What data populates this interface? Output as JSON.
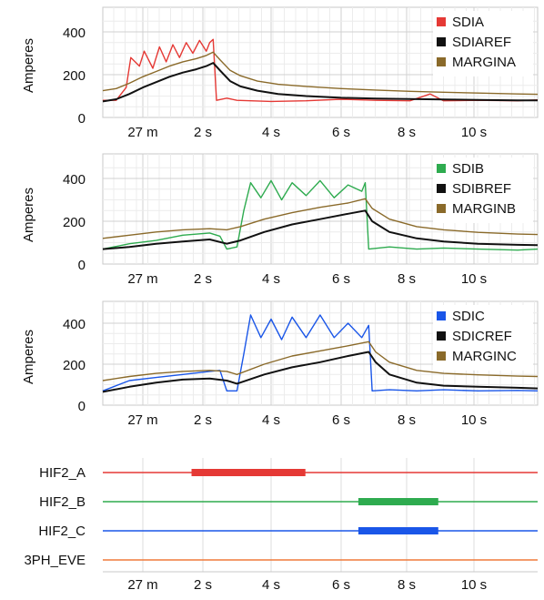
{
  "x_ticks": [
    "27 m",
    "2 s",
    "4 s",
    "6 s",
    "8 s",
    "10 s"
  ],
  "panels": [
    {
      "ylabel": "Amperes",
      "y_ticks": [
        "0",
        "200",
        "400"
      ],
      "legend": [
        {
          "label": "SDIA",
          "color": "#e53935"
        },
        {
          "label": "SDIAREF",
          "color": "#111111"
        },
        {
          "label": "MARGINA",
          "color": "#8a6a2a"
        }
      ]
    },
    {
      "ylabel": "Amperes",
      "y_ticks": [
        "0",
        "200",
        "400"
      ],
      "legend": [
        {
          "label": "SDIB",
          "color": "#2eab4f"
        },
        {
          "label": "SDIBREF",
          "color": "#111111"
        },
        {
          "label": "MARGINB",
          "color": "#8a6a2a"
        }
      ]
    },
    {
      "ylabel": "Amperes",
      "y_ticks": [
        "0",
        "200",
        "400"
      ],
      "legend": [
        {
          "label": "SDIC",
          "color": "#1a56e8"
        },
        {
          "label": "SDICREF",
          "color": "#111111"
        },
        {
          "label": "MARGINC",
          "color": "#8a6a2a"
        }
      ]
    }
  ],
  "digital": {
    "labels": [
      "HIF2_A",
      "HIF2_B",
      "HIF2_C",
      "3PH_EVE"
    ]
  },
  "chart_data": [
    {
      "type": "line",
      "ylabel": "Amperes",
      "ylim": [
        0,
        460
      ],
      "x_tick_labels": [
        "27 m",
        "2 s",
        "4 s",
        "6 s",
        "8 s",
        "10 s"
      ],
      "grid": true,
      "legend_position": "top-right",
      "series": [
        {
          "name": "SDIA",
          "color": "#e53935",
          "points": [
            [
              0,
              80
            ],
            [
              0.2,
              80
            ],
            [
              0.35,
              140
            ],
            [
              0.42,
              280
            ],
            [
              0.55,
              240
            ],
            [
              0.62,
              310
            ],
            [
              0.75,
              230
            ],
            [
              0.85,
              330
            ],
            [
              0.95,
              260
            ],
            [
              1.05,
              340
            ],
            [
              1.15,
              280
            ],
            [
              1.25,
              350
            ],
            [
              1.35,
              300
            ],
            [
              1.45,
              360
            ],
            [
              1.55,
              310
            ],
            [
              1.6,
              350
            ],
            [
              1.65,
              365
            ],
            [
              1.7,
              80
            ],
            [
              1.85,
              90
            ],
            [
              2,
              80
            ],
            [
              2.5,
              75
            ],
            [
              3,
              78
            ],
            [
              3.5,
              85
            ],
            [
              4,
              80
            ],
            [
              4.5,
              78
            ],
            [
              4.8,
              110
            ],
            [
              5,
              78
            ],
            [
              5.5,
              80
            ],
            [
              6,
              78
            ],
            [
              6.25,
              82
            ]
          ]
        },
        {
          "name": "SDIAREF",
          "color": "#111111",
          "points": [
            [
              0,
              75
            ],
            [
              0.2,
              85
            ],
            [
              0.4,
              110
            ],
            [
              0.6,
              140
            ],
            [
              0.8,
              165
            ],
            [
              1,
              190
            ],
            [
              1.2,
              210
            ],
            [
              1.4,
              225
            ],
            [
              1.55,
              240
            ],
            [
              1.65,
              255
            ],
            [
              1.75,
              220
            ],
            [
              1.9,
              170
            ],
            [
              2.05,
              145
            ],
            [
              2.3,
              125
            ],
            [
              2.6,
              110
            ],
            [
              3,
              100
            ],
            [
              3.5,
              92
            ],
            [
              4,
              88
            ],
            [
              4.5,
              86
            ],
            [
              5,
              84
            ],
            [
              5.5,
              82
            ],
            [
              6,
              80
            ],
            [
              6.25,
              80
            ]
          ]
        },
        {
          "name": "MARGINA",
          "color": "#8a6a2a",
          "points": [
            [
              0,
              125
            ],
            [
              0.2,
              135
            ],
            [
              0.4,
              160
            ],
            [
              0.6,
              190
            ],
            [
              0.8,
              215
            ],
            [
              1,
              240
            ],
            [
              1.2,
              260
            ],
            [
              1.4,
              275
            ],
            [
              1.55,
              290
            ],
            [
              1.65,
              305
            ],
            [
              1.75,
              270
            ],
            [
              1.9,
              220
            ],
            [
              2.05,
              195
            ],
            [
              2.3,
              170
            ],
            [
              2.6,
              155
            ],
            [
              3,
              145
            ],
            [
              3.5,
              135
            ],
            [
              4,
              128
            ],
            [
              4.5,
              122
            ],
            [
              5,
              118
            ],
            [
              5.5,
              114
            ],
            [
              6,
              110
            ],
            [
              6.25,
              108
            ]
          ]
        }
      ]
    },
    {
      "type": "line",
      "ylabel": "Amperes",
      "ylim": [
        0,
        460
      ],
      "x_tick_labels": [
        "27 m",
        "2 s",
        "4 s",
        "6 s",
        "8 s",
        "10 s"
      ],
      "grid": true,
      "legend_position": "top-right",
      "series": [
        {
          "name": "SDIB",
          "color": "#2eab4f",
          "points": [
            [
              0,
              70
            ],
            [
              0.4,
              95
            ],
            [
              0.8,
              110
            ],
            [
              1.2,
              135
            ],
            [
              1.6,
              145
            ],
            [
              1.75,
              130
            ],
            [
              1.85,
              70
            ],
            [
              2,
              80
            ],
            [
              2.1,
              250
            ],
            [
              2.2,
              380
            ],
            [
              2.35,
              310
            ],
            [
              2.5,
              390
            ],
            [
              2.65,
              300
            ],
            [
              2.8,
              380
            ],
            [
              3,
              320
            ],
            [
              3.2,
              390
            ],
            [
              3.4,
              310
            ],
            [
              3.6,
              370
            ],
            [
              3.8,
              340
            ],
            [
              3.85,
              380
            ],
            [
              3.9,
              70
            ],
            [
              4.2,
              80
            ],
            [
              4.6,
              70
            ],
            [
              5,
              75
            ],
            [
              5.5,
              70
            ],
            [
              6,
              65
            ],
            [
              6.25,
              70
            ]
          ]
        },
        {
          "name": "SDIBREF",
          "color": "#111111",
          "points": [
            [
              0,
              70
            ],
            [
              0.4,
              80
            ],
            [
              0.8,
              95
            ],
            [
              1.2,
              105
            ],
            [
              1.6,
              115
            ],
            [
              1.85,
              95
            ],
            [
              2.05,
              110
            ],
            [
              2.4,
              150
            ],
            [
              2.8,
              185
            ],
            [
              3.2,
              210
            ],
            [
              3.6,
              235
            ],
            [
              3.85,
              250
            ],
            [
              3.95,
              200
            ],
            [
              4.2,
              150
            ],
            [
              4.6,
              120
            ],
            [
              5,
              105
            ],
            [
              5.5,
              95
            ],
            [
              6,
              90
            ],
            [
              6.25,
              88
            ]
          ]
        },
        {
          "name": "MARGINB",
          "color": "#8a6a2a",
          "points": [
            [
              0,
              120
            ],
            [
              0.4,
              135
            ],
            [
              0.8,
              150
            ],
            [
              1.2,
              160
            ],
            [
              1.6,
              165
            ],
            [
              1.85,
              160
            ],
            [
              2.05,
              175
            ],
            [
              2.4,
              210
            ],
            [
              2.8,
              240
            ],
            [
              3.2,
              265
            ],
            [
              3.6,
              285
            ],
            [
              3.85,
              305
            ],
            [
              3.95,
              260
            ],
            [
              4.2,
              210
            ],
            [
              4.6,
              175
            ],
            [
              5,
              160
            ],
            [
              5.5,
              148
            ],
            [
              6,
              140
            ],
            [
              6.25,
              138
            ]
          ]
        }
      ]
    },
    {
      "type": "line",
      "ylabel": "Amperes",
      "ylim": [
        0,
        460
      ],
      "x_tick_labels": [
        "27 m",
        "2 s",
        "4 s",
        "6 s",
        "8 s",
        "10 s"
      ],
      "grid": true,
      "legend_position": "top-right",
      "series": [
        {
          "name": "SDIC",
          "color": "#1a56e8",
          "points": [
            [
              0,
              70
            ],
            [
              0.4,
              120
            ],
            [
              0.8,
              135
            ],
            [
              1.2,
              150
            ],
            [
              1.6,
              165
            ],
            [
              1.75,
              170
            ],
            [
              1.85,
              70
            ],
            [
              2,
              70
            ],
            [
              2.1,
              250
            ],
            [
              2.2,
              440
            ],
            [
              2.35,
              330
            ],
            [
              2.5,
              420
            ],
            [
              2.65,
              320
            ],
            [
              2.8,
              430
            ],
            [
              3,
              330
            ],
            [
              3.2,
              440
            ],
            [
              3.4,
              330
            ],
            [
              3.6,
              400
            ],
            [
              3.8,
              330
            ],
            [
              3.9,
              390
            ],
            [
              3.95,
              70
            ],
            [
              4.2,
              75
            ],
            [
              4.6,
              70
            ],
            [
              5,
              75
            ],
            [
              5.5,
              70
            ],
            [
              6,
              72
            ],
            [
              6.25,
              70
            ]
          ]
        },
        {
          "name": "SDICREF",
          "color": "#111111",
          "points": [
            [
              0,
              65
            ],
            [
              0.4,
              90
            ],
            [
              0.8,
              110
            ],
            [
              1.2,
              125
            ],
            [
              1.6,
              130
            ],
            [
              1.85,
              120
            ],
            [
              2,
              105
            ],
            [
              2.4,
              150
            ],
            [
              2.8,
              185
            ],
            [
              3.2,
              210
            ],
            [
              3.6,
              240
            ],
            [
              3.9,
              260
            ],
            [
              4,
              210
            ],
            [
              4.2,
              150
            ],
            [
              4.6,
              110
            ],
            [
              5,
              95
            ],
            [
              5.5,
              90
            ],
            [
              6,
              85
            ],
            [
              6.25,
              82
            ]
          ]
        },
        {
          "name": "MARGINC",
          "color": "#8a6a2a",
          "points": [
            [
              0,
              120
            ],
            [
              0.4,
              140
            ],
            [
              0.8,
              155
            ],
            [
              1.2,
              165
            ],
            [
              1.6,
              170
            ],
            [
              1.85,
              165
            ],
            [
              2,
              150
            ],
            [
              2.4,
              200
            ],
            [
              2.8,
              240
            ],
            [
              3.2,
              265
            ],
            [
              3.6,
              290
            ],
            [
              3.9,
              310
            ],
            [
              4,
              260
            ],
            [
              4.2,
              210
            ],
            [
              4.6,
              170
            ],
            [
              5,
              155
            ],
            [
              5.5,
              148
            ],
            [
              6,
              142
            ],
            [
              6.25,
              140
            ]
          ]
        }
      ]
    },
    {
      "type": "timeline",
      "x_tick_labels": [
        "27 m",
        "2 s",
        "4 s",
        "6 s",
        "8 s",
        "10 s"
      ],
      "tracks": [
        {
          "name": "HIF2_A",
          "color": "#e53935",
          "asserted": [
            [
              1.33,
              2.99
            ]
          ]
        },
        {
          "name": "HIF2_B",
          "color": "#2eab4f",
          "asserted": [
            [
              3.75,
              4.92
            ]
          ]
        },
        {
          "name": "HIF2_C",
          "color": "#1a56e8",
          "asserted": [
            [
              3.75,
              4.92
            ]
          ]
        },
        {
          "name": "3PH_EVE",
          "color": "#f07a3a",
          "asserted": []
        }
      ]
    }
  ]
}
